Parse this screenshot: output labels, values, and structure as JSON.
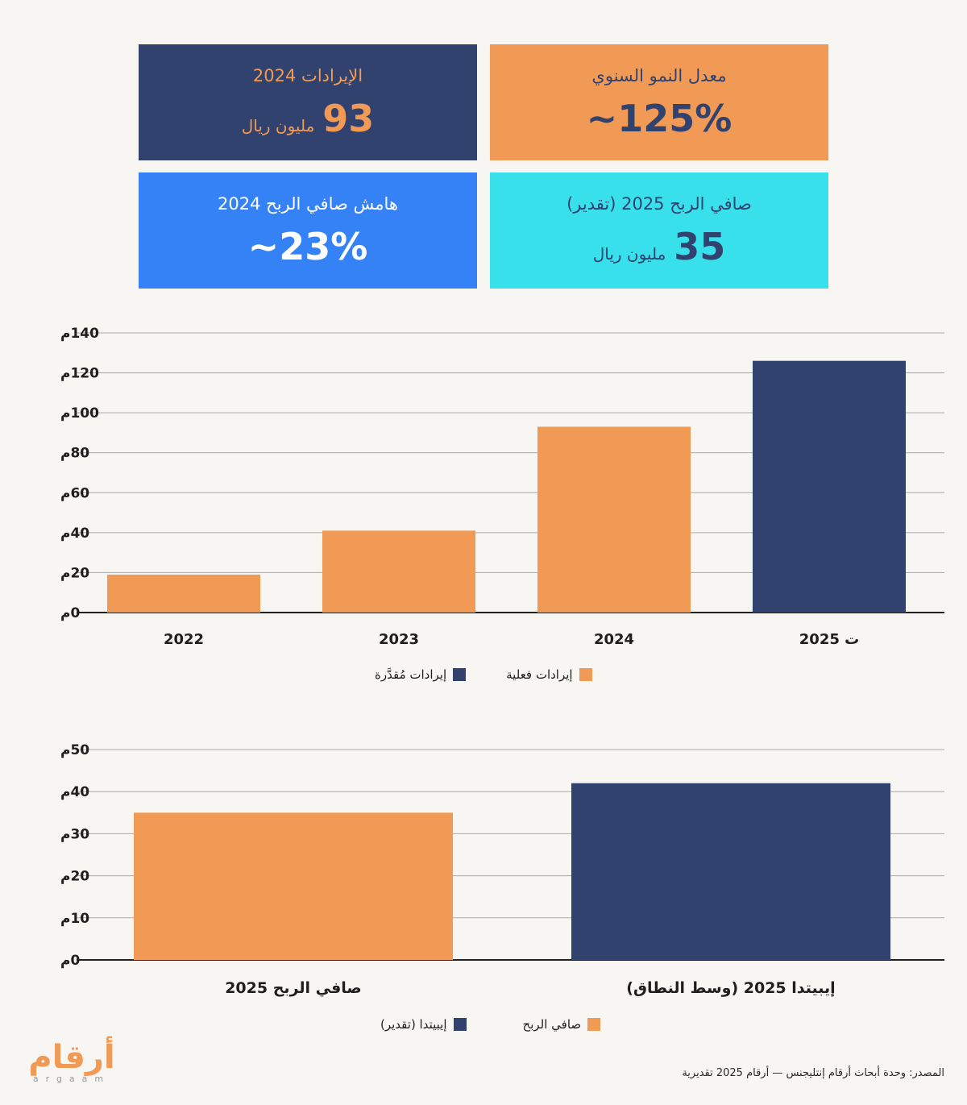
{
  "cards": {
    "revenue": {
      "title": "الإيرادات 2024",
      "value": "93",
      "unit": "مليون ريال"
    },
    "growth": {
      "title": "معدل النمو السنوي",
      "value": "~125%"
    },
    "margin": {
      "title": "هامش صافي الربح 2024",
      "value": "~23%"
    },
    "profit": {
      "title": "صافي الربح 2025 (تقدير)",
      "value": "35",
      "unit": "مليون ريال"
    }
  },
  "colors": {
    "orange": "#f09a55",
    "navy": "#32426f",
    "blue": "#3482f6",
    "cyan": "#37e0ea"
  },
  "chart_data": [
    {
      "type": "bar",
      "categories": [
        "2022",
        "2023",
        "2024",
        "ت 2025"
      ],
      "values": [
        19,
        41,
        93,
        126
      ],
      "colors": [
        "orange",
        "orange",
        "orange",
        "navy"
      ],
      "ytick_labels": [
        "0م",
        "20م",
        "40م",
        "60م",
        "80م",
        "100م",
        "120م",
        "140م"
      ],
      "ylim": [
        0,
        140
      ],
      "grid": true,
      "legend_position": "bottom-center",
      "legend": [
        {
          "label": "إيرادات فعلية",
          "color": "orange"
        },
        {
          "label": "إيرادات مُقدَّرة",
          "color": "navy"
        }
      ]
    },
    {
      "type": "bar",
      "categories": [
        "إيبيتدا 2025 (وسط النطاق)",
        "صافي الربح 2025"
      ],
      "values": [
        42,
        35
      ],
      "colors": [
        "navy",
        "orange"
      ],
      "ytick_labels": [
        "0م",
        "10م",
        "20م",
        "30م",
        "40م",
        "50م"
      ],
      "ylim": [
        0,
        50
      ],
      "grid": true,
      "legend_position": "bottom-center",
      "legend": [
        {
          "label": "صافي الربح",
          "color": "orange"
        },
        {
          "label": "إيبيتدا (تقدير)",
          "color": "navy"
        }
      ]
    }
  ],
  "logo": {
    "arabic": "أرقام",
    "latin": "argaam"
  },
  "source": "المصدر: وحدة أبحاث أرقام إنتليجنس — أرقام 2025 تقديرية"
}
